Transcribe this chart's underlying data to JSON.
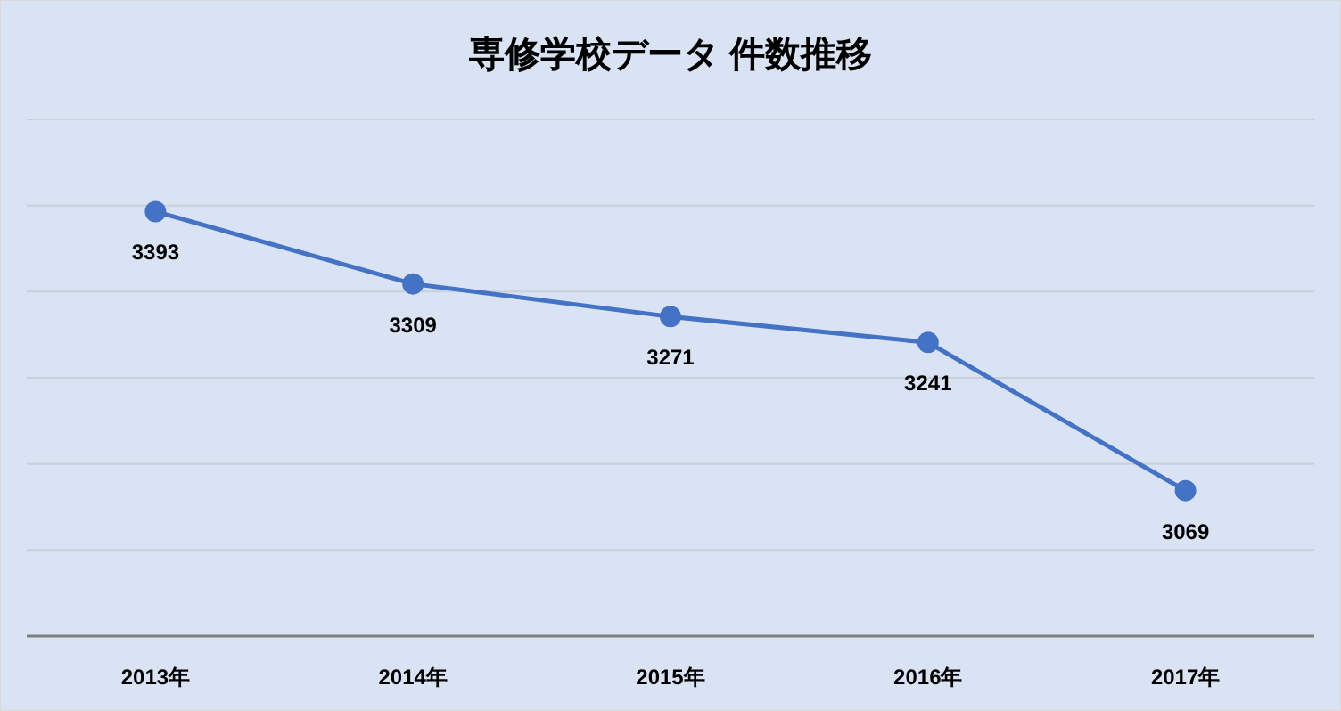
{
  "chart_data": {
    "type": "line",
    "title": "専修学校データ 件数推移",
    "categories": [
      "2013年",
      "2014年",
      "2015年",
      "2016年",
      "2017年"
    ],
    "series": [
      {
        "color": "#4472c4",
        "values": [
          3393,
          3309,
          3271,
          3241,
          3069
        ]
      }
    ],
    "ylim": [
      2900,
      3500
    ],
    "yticks": [
      {
        "value": 3000,
        "label": null
      },
      {
        "value": 3100,
        "label": null
      },
      {
        "value": 3200,
        "label": null
      },
      {
        "value": 3300,
        "label": null
      },
      {
        "value": 3400,
        "label": null
      },
      {
        "value": 3500,
        "label": null
      }
    ],
    "grid": "y",
    "marker": "circle",
    "line_style": "solid",
    "data_labels": true
  }
}
